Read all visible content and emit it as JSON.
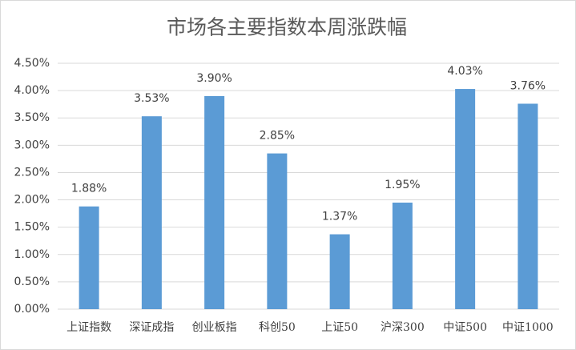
{
  "chart_data": {
    "type": "bar",
    "title": "市场各主要指数本周涨跌幅",
    "categories": [
      "上证指数",
      "深证成指",
      "创业板指",
      "科创50",
      "上证50",
      "沪深300",
      "中证500",
      "中证1000"
    ],
    "values": [
      1.88,
      3.53,
      3.9,
      2.85,
      1.37,
      1.95,
      4.03,
      3.76
    ],
    "value_labels": [
      "1.88%",
      "3.53%",
      "3.90%",
      "2.85%",
      "1.37%",
      "1.95%",
      "4.03%",
      "3.76%"
    ],
    "color": "#5b9bd5",
    "ylim": [
      0,
      4.5
    ],
    "yticks": [
      {
        "value": 0,
        "label": "0.00%"
      },
      {
        "value": 0.5,
        "label": "0.50%"
      },
      {
        "value": 1,
        "label": "1.00%"
      },
      {
        "value": 1.5,
        "label": "1.50%"
      },
      {
        "value": 2,
        "label": "2.00%"
      },
      {
        "value": 2.5,
        "label": "2.50%"
      },
      {
        "value": 3,
        "label": "3.00%"
      },
      {
        "value": 3.5,
        "label": "3.50%"
      },
      {
        "value": 4,
        "label": "4.00%"
      },
      {
        "value": 4.5,
        "label": "4.50%"
      }
    ],
    "grid": true
  }
}
